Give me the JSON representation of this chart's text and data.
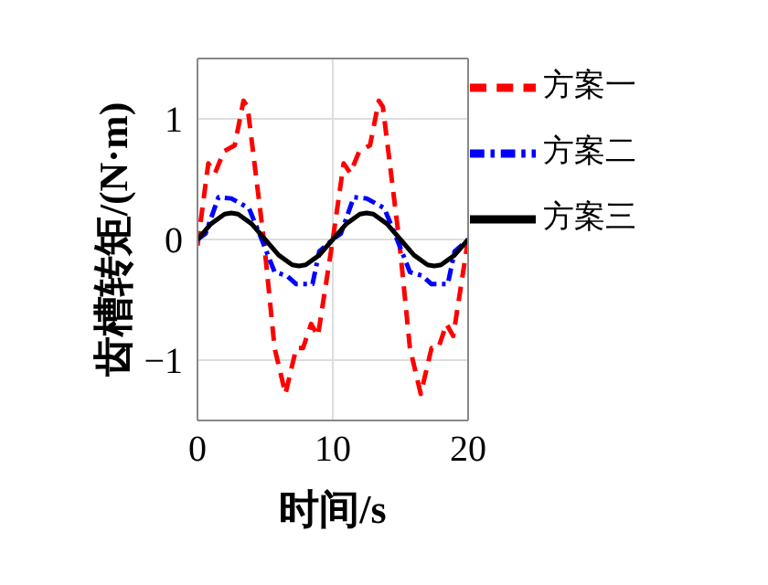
{
  "chart_data": {
    "type": "line",
    "xlabel": "时间/s",
    "ylabel": "齿槽转矩/(N·m)",
    "xlim": [
      0,
      20
    ],
    "xticks": [
      0,
      10,
      20
    ],
    "ylim": [
      -1.5,
      1.5
    ],
    "yticks": [
      -1,
      0,
      1
    ],
    "grid": true,
    "legend": "top right",
    "marker": "none",
    "series": [
      {
        "name": "方案一",
        "color": "#ff0000",
        "line_style": "dashed",
        "x": [
          0,
          0.8,
          1.3,
          1.95,
          2.75,
          3.4,
          3.7,
          4.9,
          5.7,
          6.5,
          7.3,
          7.8,
          8.4,
          8.9,
          10,
          10.8,
          11.3,
          11.95,
          12.75,
          13.4,
          13.7,
          14.9,
          15.7,
          16.5,
          17.3,
          17.8,
          18.4,
          18.9,
          20
        ],
        "values": [
          -0.05,
          0.63,
          0.55,
          0.73,
          0.78,
          1.15,
          1.1,
          0,
          -0.9,
          -1.28,
          -0.9,
          -0.9,
          -0.7,
          -0.8,
          0,
          0.63,
          0.55,
          0.73,
          0.78,
          1.15,
          1.1,
          0,
          -0.9,
          -1.28,
          -0.9,
          -0.9,
          -0.7,
          -0.8,
          0
        ]
      },
      {
        "name": "方案二",
        "color": "#0000ff",
        "line_style": "dashdot",
        "x": [
          0,
          0.6,
          1.55,
          2.5,
          3.8,
          4.75,
          5.7,
          6.6,
          7.3,
          8.5,
          9,
          10,
          10.6,
          11.55,
          12.5,
          13.8,
          14.75,
          15.7,
          16.6,
          17.3,
          18.5,
          19,
          20
        ],
        "values": [
          0,
          0.05,
          0.35,
          0.34,
          0.26,
          0,
          -0.27,
          -0.3,
          -0.37,
          -0.37,
          -0.1,
          0,
          0.05,
          0.35,
          0.34,
          0.26,
          0,
          -0.27,
          -0.3,
          -0.37,
          -0.37,
          -0.1,
          0
        ]
      },
      {
        "name": "方案三",
        "color": "#000000",
        "line_style": "solid",
        "x": [
          0,
          1,
          2,
          2.5,
          3,
          4,
          5,
          6,
          7,
          7.5,
          8,
          9,
          10,
          11,
          12,
          12.5,
          13,
          14,
          15,
          16,
          17,
          17.5,
          18,
          19,
          20
        ],
        "values": [
          0,
          0.13,
          0.21,
          0.22,
          0.21,
          0.13,
          0,
          -0.13,
          -0.21,
          -0.22,
          -0.21,
          -0.13,
          0,
          0.13,
          0.21,
          0.22,
          0.21,
          0.13,
          0,
          -0.13,
          -0.21,
          -0.22,
          -0.21,
          -0.13,
          0
        ]
      }
    ]
  }
}
